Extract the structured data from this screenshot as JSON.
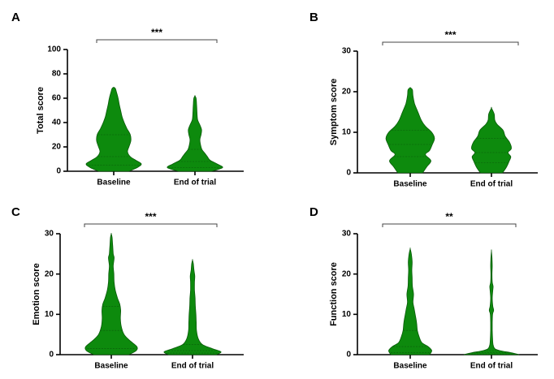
{
  "chart_data": [
    {
      "panel_label": "A",
      "type": "violin",
      "ylabel": "Total score",
      "ylim": [
        0,
        100
      ],
      "yticks": [
        0,
        20,
        40,
        60,
        80,
        100
      ],
      "categories": [
        "Baseline",
        "End of trial"
      ],
      "significance": "***",
      "quartiles": [
        [
          5,
          12,
          30
        ],
        [
          3,
          8,
          18
        ]
      ],
      "violins": [
        {
          "category": "Baseline",
          "profile": [
            [
              0,
              0.55
            ],
            [
              3,
              0.85
            ],
            [
              6,
              1.0
            ],
            [
              9,
              0.8
            ],
            [
              12,
              0.6
            ],
            [
              16,
              0.5
            ],
            [
              20,
              0.55
            ],
            [
              25,
              0.62
            ],
            [
              30,
              0.6
            ],
            [
              35,
              0.48
            ],
            [
              40,
              0.38
            ],
            [
              45,
              0.3
            ],
            [
              50,
              0.25
            ],
            [
              55,
              0.2
            ],
            [
              60,
              0.16
            ],
            [
              65,
              0.1
            ],
            [
              68,
              0.06
            ],
            [
              69,
              0
            ]
          ]
        },
        {
          "category": "End of trial",
          "profile": [
            [
              0,
              0.6
            ],
            [
              3,
              1.0
            ],
            [
              6,
              0.8
            ],
            [
              9,
              0.55
            ],
            [
              12,
              0.45
            ],
            [
              15,
              0.35
            ],
            [
              18,
              0.25
            ],
            [
              22,
              0.2
            ],
            [
              26,
              0.18
            ],
            [
              30,
              0.22
            ],
            [
              34,
              0.24
            ],
            [
              38,
              0.18
            ],
            [
              42,
              0.1
            ],
            [
              46,
              0.08
            ],
            [
              50,
              0.07
            ],
            [
              55,
              0.06
            ],
            [
              60,
              0.04
            ],
            [
              62,
              0
            ]
          ]
        }
      ]
    },
    {
      "panel_label": "B",
      "type": "violin",
      "ylabel": "Symptom score",
      "ylim": [
        0,
        30
      ],
      "yticks": [
        0,
        10,
        20,
        30
      ],
      "categories": [
        "Baseline",
        "End of trial"
      ],
      "significance": "***",
      "quartiles": [
        [
          4,
          7,
          10.5
        ],
        [
          2.5,
          5,
          8.5
        ]
      ],
      "violins": [
        {
          "category": "Baseline",
          "profile": [
            [
              0,
              0.45
            ],
            [
              1.5,
              0.6
            ],
            [
              3,
              0.75
            ],
            [
              4.5,
              0.55
            ],
            [
              5.5,
              0.7
            ],
            [
              7,
              0.8
            ],
            [
              8.5,
              0.88
            ],
            [
              10,
              0.78
            ],
            [
              11.5,
              0.55
            ],
            [
              13,
              0.4
            ],
            [
              15,
              0.28
            ],
            [
              17,
              0.16
            ],
            [
              19,
              0.1
            ],
            [
              20.5,
              0.08
            ],
            [
              21,
              0
            ]
          ]
        },
        {
          "category": "End of trial",
          "profile": [
            [
              0,
              0.4
            ],
            [
              1.5,
              0.55
            ],
            [
              3,
              0.65
            ],
            [
              4,
              0.7
            ],
            [
              5,
              0.6
            ],
            [
              6,
              0.72
            ],
            [
              7.5,
              0.66
            ],
            [
              9,
              0.5
            ],
            [
              10.5,
              0.42
            ],
            [
              12,
              0.2
            ],
            [
              13,
              0.12
            ],
            [
              14.5,
              0.1
            ],
            [
              16,
              0
            ]
          ]
        }
      ]
    },
    {
      "panel_label": "C",
      "type": "violin",
      "ylabel": "Emotion score",
      "ylim": [
        0,
        30
      ],
      "yticks": [
        0,
        10,
        20,
        30
      ],
      "categories": [
        "Baseline",
        "End of trial"
      ],
      "significance": "***",
      "quartiles": [
        [
          1.5,
          6,
          12
        ],
        [
          0.4,
          1,
          2.5
        ]
      ],
      "violins": [
        {
          "category": "Baseline",
          "profile": [
            [
              0,
              0.62
            ],
            [
              1,
              0.88
            ],
            [
              2,
              0.9
            ],
            [
              3.5,
              0.65
            ],
            [
              5,
              0.45
            ],
            [
              7,
              0.35
            ],
            [
              9,
              0.32
            ],
            [
              11,
              0.33
            ],
            [
              12.5,
              0.3
            ],
            [
              14,
              0.22
            ],
            [
              16,
              0.14
            ],
            [
              18,
              0.1
            ],
            [
              20,
              0.09
            ],
            [
              22,
              0.07
            ],
            [
              24,
              0.1
            ],
            [
              25,
              0.07
            ],
            [
              27,
              0.05
            ],
            [
              29,
              0.03
            ],
            [
              30,
              0
            ]
          ]
        },
        {
          "category": "End of trial",
          "profile": [
            [
              0,
              0.85
            ],
            [
              0.7,
              1.0
            ],
            [
              1.5,
              0.7
            ],
            [
              2.5,
              0.35
            ],
            [
              4,
              0.2
            ],
            [
              6,
              0.14
            ],
            [
              8,
              0.13
            ],
            [
              10,
              0.12
            ],
            [
              12,
              0.1
            ],
            [
              14,
              0.09
            ],
            [
              16,
              0.07
            ],
            [
              18,
              0.07
            ],
            [
              19.5,
              0.08
            ],
            [
              21,
              0.05
            ],
            [
              22.5,
              0.03
            ],
            [
              23.5,
              0
            ]
          ]
        }
      ]
    },
    {
      "panel_label": "D",
      "type": "violin",
      "ylabel": "Function score",
      "ylim": [
        0,
        30
      ],
      "yticks": [
        0,
        10,
        20,
        30
      ],
      "categories": [
        "Baseline",
        "End of trial"
      ],
      "significance": "**",
      "quartiles": [
        [
          0.5,
          2,
          6
        ],
        [
          0.2,
          0.5,
          1
        ]
      ],
      "violins": [
        {
          "category": "Baseline",
          "profile": [
            [
              0,
              0.7
            ],
            [
              1,
              0.78
            ],
            [
              2,
              0.65
            ],
            [
              3,
              0.42
            ],
            [
              4.5,
              0.32
            ],
            [
              6,
              0.26
            ],
            [
              8,
              0.23
            ],
            [
              10,
              0.18
            ],
            [
              11.5,
              0.14
            ],
            [
              13,
              0.1
            ],
            [
              15,
              0.12
            ],
            [
              17,
              0.08
            ],
            [
              19,
              0.07
            ],
            [
              21,
              0.06
            ],
            [
              23,
              0.07
            ],
            [
              25,
              0.04
            ],
            [
              26.3,
              0
            ]
          ]
        },
        {
          "category": "End of trial",
          "profile": [
            [
              0,
              1.0
            ],
            [
              0.5,
              0.7
            ],
            [
              1,
              0.3
            ],
            [
              1.5,
              0.12
            ],
            [
              2.5,
              0.06
            ],
            [
              4,
              0.04
            ],
            [
              6,
              0.03
            ],
            [
              8,
              0.03
            ],
            [
              10,
              0.04
            ],
            [
              11,
              0.08
            ],
            [
              12,
              0.05
            ],
            [
              14,
              0.03
            ],
            [
              16,
              0.05
            ],
            [
              17,
              0.06
            ],
            [
              18,
              0.03
            ],
            [
              20,
              0.02
            ],
            [
              22,
              0.03
            ],
            [
              24,
              0.02
            ],
            [
              25.8,
              0
            ]
          ]
        }
      ]
    }
  ]
}
